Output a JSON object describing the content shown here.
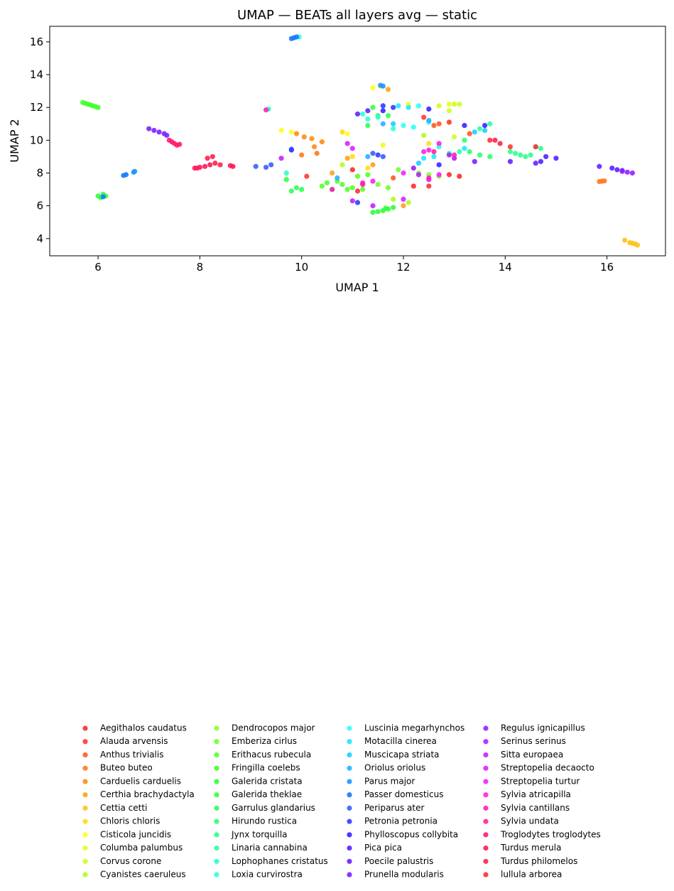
{
  "chart_data": {
    "type": "scatter",
    "title": "UMAP — BEATs all layers avg — static",
    "xlabel": "UMAP 1",
    "ylabel": "UMAP 2",
    "xlim": [
      5.05,
      17.15
    ],
    "ylim": [
      2.95,
      16.95
    ],
    "xticks": [
      6,
      8,
      10,
      12,
      14,
      16
    ],
    "yticks": [
      4,
      6,
      8,
      10,
      12,
      14,
      16
    ],
    "grid": false,
    "legend_position": "bottom, 4 columns",
    "series": [
      {
        "name": "Aegithalos caudatus",
        "color": "#ff2a2a",
        "points": [
          [
            12.9,
            7.9
          ],
          [
            13.1,
            7.8
          ],
          [
            12.2,
            7.2
          ],
          [
            11.0,
            8.2
          ]
        ]
      },
      {
        "name": "Alauda arvensis",
        "color": "#ff3a2e",
        "points": [
          [
            12.4,
            11.4
          ],
          [
            12.9,
            11.1
          ],
          [
            14.1,
            9.6
          ],
          [
            10.1,
            7.8
          ]
        ]
      },
      {
        "name": "Anthus trivialis",
        "color": "#ff5a22",
        "points": [
          [
            12.6,
            10.9
          ],
          [
            12.7,
            11.0
          ],
          [
            13.3,
            10.4
          ],
          [
            11.8,
            7.7
          ]
        ]
      },
      {
        "name": "Buteo buteo",
        "color": "#ff7a22",
        "points": [
          [
            15.9,
            7.5
          ],
          [
            15.85,
            7.48
          ],
          [
            15.95,
            7.52
          ],
          [
            10.3,
            9.2
          ],
          [
            10.0,
            9.1
          ]
        ]
      },
      {
        "name": "Carduelis carduelis",
        "color": "#ff8c1a",
        "points": [
          [
            9.9,
            10.4
          ],
          [
            10.05,
            10.2
          ],
          [
            10.2,
            10.1
          ],
          [
            10.4,
            9.9
          ],
          [
            10.25,
            9.6
          ]
        ]
      },
      {
        "name": "Certhia brachydactyla",
        "color": "#ffa020",
        "points": [
          [
            11.7,
            13.1
          ],
          [
            10.6,
            8.0
          ],
          [
            10.9,
            8.9
          ],
          [
            11.4,
            8.5
          ],
          [
            12.0,
            6.0
          ]
        ]
      },
      {
        "name": "Cettia cetti",
        "color": "#ffc21a",
        "points": [
          [
            16.35,
            3.9
          ],
          [
            16.45,
            3.75
          ],
          [
            16.5,
            3.72
          ],
          [
            16.55,
            3.68
          ],
          [
            16.6,
            3.6
          ]
        ]
      },
      {
        "name": "Chloris chloris",
        "color": "#ffdd14",
        "points": [
          [
            10.8,
            10.5
          ],
          [
            11.3,
            8.3
          ],
          [
            11.0,
            9.0
          ],
          [
            12.5,
            9.8
          ]
        ]
      },
      {
        "name": "Cisticola juncidis",
        "color": "#ffff1a",
        "points": [
          [
            9.6,
            10.6
          ],
          [
            9.8,
            10.5
          ],
          [
            11.4,
            13.2
          ],
          [
            10.9,
            10.4
          ]
        ]
      },
      {
        "name": "Columba palumbus",
        "color": "#e8ff1a",
        "points": [
          [
            11.55,
            13.3
          ],
          [
            12.1,
            12.2
          ],
          [
            11.6,
            9.7
          ],
          [
            12.9,
            12.2
          ]
        ]
      },
      {
        "name": "Corvus corone",
        "color": "#ccff22",
        "points": [
          [
            12.7,
            12.1
          ],
          [
            12.9,
            11.8
          ],
          [
            13.0,
            12.2
          ],
          [
            13.1,
            12.2
          ],
          [
            13.0,
            10.2
          ]
        ]
      },
      {
        "name": "Cyanistes caeruleus",
        "color": "#adff22",
        "points": [
          [
            11.8,
            6.4
          ],
          [
            12.1,
            6.2
          ],
          [
            10.8,
            8.5
          ],
          [
            12.4,
            10.3
          ]
        ]
      },
      {
        "name": "Dendrocopos major",
        "color": "#8cff2a",
        "points": [
          [
            12.3,
            8.0
          ],
          [
            12.5,
            7.9
          ],
          [
            12.7,
            7.8
          ]
        ]
      },
      {
        "name": "Emberiza cirlus",
        "color": "#6fff2e",
        "points": [
          [
            11.7,
            7.1
          ],
          [
            11.9,
            8.2
          ],
          [
            11.5,
            7.3
          ]
        ]
      },
      {
        "name": "Erithacus rubecula",
        "color": "#55ff2e",
        "points": [
          [
            10.4,
            7.2
          ],
          [
            10.5,
            7.4
          ],
          [
            10.7,
            7.5
          ],
          [
            10.9,
            7.0
          ],
          [
            10.8,
            7.3
          ],
          [
            11.0,
            7.1
          ],
          [
            11.2,
            7.0
          ],
          [
            11.1,
            7.8
          ],
          [
            11.3,
            7.9
          ]
        ]
      },
      {
        "name": "Fringilla coelebs",
        "color": "#44ff2a",
        "points": [
          [
            5.7,
            12.3
          ],
          [
            5.75,
            12.25
          ],
          [
            5.8,
            12.2
          ],
          [
            5.85,
            12.15
          ],
          [
            5.9,
            12.1
          ],
          [
            5.95,
            12.05
          ],
          [
            6.0,
            12.0
          ]
        ]
      },
      {
        "name": "Galerida cristata",
        "color": "#2eff3a",
        "points": [
          [
            11.4,
            5.6
          ],
          [
            11.5,
            5.65
          ],
          [
            11.6,
            5.7
          ],
          [
            11.7,
            5.8
          ],
          [
            11.8,
            5.9
          ],
          [
            11.65,
            5.85
          ]
        ]
      },
      {
        "name": "Galerida theklae",
        "color": "#33ff44",
        "points": [
          [
            6.0,
            6.6
          ],
          [
            6.05,
            6.5
          ],
          [
            6.1,
            6.7
          ],
          [
            6.15,
            6.6
          ],
          [
            9.7,
            7.6
          ],
          [
            11.4,
            12.0
          ]
        ]
      },
      {
        "name": "Garrulus glandarius",
        "color": "#2eff5a",
        "points": [
          [
            9.8,
            6.9
          ],
          [
            9.9,
            7.1
          ],
          [
            10.0,
            7.0
          ],
          [
            11.3,
            10.9
          ],
          [
            11.5,
            11.5
          ],
          [
            11.7,
            11.5
          ]
        ]
      },
      {
        "name": "Hirundo rustica",
        "color": "#2eff73",
        "points": [
          [
            13.2,
            10.0
          ],
          [
            13.3,
            9.3
          ],
          [
            13.5,
            9.1
          ],
          [
            13.7,
            9.0
          ]
        ]
      },
      {
        "name": "Jynx torquilla",
        "color": "#2eff8c",
        "points": [
          [
            14.1,
            9.3
          ],
          [
            14.2,
            9.2
          ],
          [
            14.3,
            9.1
          ],
          [
            14.4,
            9.0
          ],
          [
            14.5,
            9.1
          ],
          [
            14.6,
            9.6
          ],
          [
            14.7,
            9.5
          ]
        ]
      },
      {
        "name": "Linaria cannabina",
        "color": "#2effa5",
        "points": [
          [
            13.5,
            10.7
          ],
          [
            13.7,
            11.0
          ],
          [
            12.9,
            9.2
          ],
          [
            13.1,
            9.3
          ]
        ]
      },
      {
        "name": "Lophophanes cristatus",
        "color": "#2effc2",
        "points": [
          [
            9.35,
            11.9
          ],
          [
            9.7,
            8.0
          ],
          [
            10.6,
            7.0
          ]
        ]
      },
      {
        "name": "Loxia curvirostra",
        "color": "#2effe0",
        "points": [
          [
            9.95,
            16.3
          ],
          [
            11.2,
            11.6
          ],
          [
            11.3,
            11.3
          ],
          [
            11.5,
            11.4
          ],
          [
            11.8,
            10.7
          ]
        ]
      },
      {
        "name": "Luscinia megarhynchos",
        "color": "#2efff8",
        "points": [
          [
            12.0,
            10.9
          ],
          [
            12.2,
            10.8
          ],
          [
            12.3,
            12.1
          ],
          [
            12.5,
            11.1
          ],
          [
            12.7,
            9.6
          ]
        ]
      },
      {
        "name": "Motacilla cinerea",
        "color": "#22e6ff",
        "points": [
          [
            11.9,
            12.1
          ],
          [
            12.1,
            12.0
          ],
          [
            12.4,
            8.9
          ],
          [
            12.6,
            9.0
          ],
          [
            13.2,
            9.5
          ]
        ]
      },
      {
        "name": "Muscicapa striata",
        "color": "#22ccff",
        "points": [
          [
            13.4,
            10.5
          ],
          [
            13.6,
            10.6
          ],
          [
            12.3,
            8.6
          ],
          [
            11.8,
            11.0
          ]
        ]
      },
      {
        "name": "Oriolus oriolus",
        "color": "#2ab0ff",
        "points": [
          [
            11.3,
            9.0
          ],
          [
            10.7,
            7.7
          ],
          [
            12.5,
            11.2
          ],
          [
            11.6,
            11.0
          ]
        ]
      },
      {
        "name": "Parus major",
        "color": "#1e96ff",
        "points": [
          [
            11.55,
            13.35
          ],
          [
            11.6,
            13.3
          ],
          [
            6.7,
            8.05
          ],
          [
            6.72,
            8.1
          ]
        ]
      },
      {
        "name": "Passer domesticus",
        "color": "#1a78ff",
        "points": [
          [
            9.8,
            16.2
          ],
          [
            9.85,
            16.25
          ],
          [
            9.9,
            16.3
          ],
          [
            6.5,
            7.85
          ],
          [
            6.55,
            7.9
          ],
          [
            6.1,
            6.55
          ]
        ]
      },
      {
        "name": "Periparus ater",
        "color": "#3a5eff",
        "points": [
          [
            9.1,
            8.4
          ],
          [
            9.3,
            8.35
          ],
          [
            9.4,
            8.5
          ],
          [
            9.8,
            9.45
          ],
          [
            11.6,
            9.0
          ],
          [
            11.4,
            9.2
          ]
        ]
      },
      {
        "name": "Petronia petronia",
        "color": "#2e3eff",
        "points": [
          [
            11.8,
            12.0
          ],
          [
            11.6,
            12.1
          ],
          [
            9.8,
            9.4
          ],
          [
            11.1,
            6.2
          ],
          [
            11.5,
            9.1
          ]
        ]
      },
      {
        "name": "Phylloscopus collybita",
        "color": "#3a22ff",
        "points": [
          [
            12.7,
            8.5
          ],
          [
            13.2,
            10.9
          ],
          [
            13.6,
            10.9
          ],
          [
            12.5,
            11.9
          ],
          [
            11.6,
            11.8
          ]
        ]
      },
      {
        "name": "Pica pica",
        "color": "#5522ff",
        "points": [
          [
            14.7,
            8.7
          ],
          [
            14.8,
            9.0
          ],
          [
            15.0,
            8.9
          ],
          [
            16.1,
            8.3
          ],
          [
            16.2,
            8.2
          ],
          [
            16.3,
            8.15
          ]
        ]
      },
      {
        "name": "Poecile palustris",
        "color": "#6622ff",
        "points": [
          [
            15.85,
            8.4
          ],
          [
            14.1,
            8.7
          ],
          [
            14.6,
            8.6
          ],
          [
            11.1,
            11.6
          ],
          [
            11.3,
            11.8
          ]
        ]
      },
      {
        "name": "Prunella modularis",
        "color": "#7a22ff",
        "points": [
          [
            7.0,
            10.7
          ],
          [
            7.1,
            10.6
          ],
          [
            7.2,
            10.5
          ],
          [
            7.3,
            10.4
          ],
          [
            7.35,
            10.3
          ],
          [
            13.4,
            8.7
          ]
        ]
      },
      {
        "name": "Regulus ignicapillus",
        "color": "#9422ff",
        "points": [
          [
            16.3,
            8.1
          ],
          [
            16.4,
            8.05
          ],
          [
            16.5,
            8.0
          ],
          [
            12.2,
            8.3
          ]
        ]
      },
      {
        "name": "Serinus serinus",
        "color": "#ad22ff",
        "points": [
          [
            12.9,
            9.1
          ],
          [
            13.0,
            8.9
          ],
          [
            12.3,
            7.9
          ]
        ]
      },
      {
        "name": "Sitta europaea",
        "color": "#c222ff",
        "points": [
          [
            11.4,
            6.0
          ],
          [
            11.0,
            6.3
          ],
          [
            9.6,
            8.9
          ]
        ]
      },
      {
        "name": "Streptopelia decaocto",
        "color": "#dd22ff",
        "points": [
          [
            12.0,
            6.4
          ],
          [
            12.5,
            7.6
          ],
          [
            11.0,
            9.5
          ],
          [
            10.9,
            9.8
          ]
        ]
      },
      {
        "name": "Streptopelia turtur",
        "color": "#f522ff",
        "points": [
          [
            11.4,
            7.5
          ],
          [
            12.0,
            8.0
          ],
          [
            12.7,
            7.9
          ]
        ]
      },
      {
        "name": "Sylvia atricapilla",
        "color": "#ff22e0",
        "points": [
          [
            12.4,
            9.3
          ],
          [
            12.5,
            9.4
          ],
          [
            12.7,
            9.8
          ],
          [
            11.2,
            7.4
          ]
        ]
      },
      {
        "name": "Sylvia cantillans",
        "color": "#ff22b8",
        "points": [
          [
            9.3,
            11.85
          ],
          [
            12.5,
            7.7
          ],
          [
            13.0,
            9.1
          ]
        ]
      },
      {
        "name": "Sylvia undata",
        "color": "#ff2299",
        "points": [
          [
            11.2,
            7.3
          ],
          [
            10.6,
            7.0
          ],
          [
            12.6,
            9.3
          ]
        ]
      },
      {
        "name": "Troglodytes troglodytes",
        "color": "#ff1a73",
        "points": [
          [
            7.5,
            9.8
          ],
          [
            7.55,
            9.7
          ],
          [
            7.6,
            9.75
          ],
          [
            7.45,
            9.9
          ],
          [
            7.4,
            10.0
          ],
          [
            7.95,
            8.3
          ]
        ]
      },
      {
        "name": "Turdus merula",
        "color": "#ff1a55",
        "points": [
          [
            7.9,
            8.3
          ],
          [
            8.0,
            8.35
          ],
          [
            8.1,
            8.4
          ],
          [
            8.2,
            8.5
          ],
          [
            8.6,
            8.45
          ],
          [
            8.65,
            8.4
          ]
        ]
      },
      {
        "name": "Turdus philomelos",
        "color": "#ff224a",
        "points": [
          [
            8.15,
            8.9
          ],
          [
            8.25,
            9.0
          ],
          [
            8.3,
            8.6
          ],
          [
            8.4,
            8.5
          ],
          [
            13.8,
            10.0
          ],
          [
            13.9,
            9.8
          ]
        ]
      },
      {
        "name": "lullula arborea",
        "color": "#ff2e3a",
        "points": [
          [
            13.7,
            10.0
          ],
          [
            14.6,
            9.6
          ],
          [
            12.5,
            7.2
          ],
          [
            11.1,
            6.9
          ]
        ]
      }
    ]
  }
}
